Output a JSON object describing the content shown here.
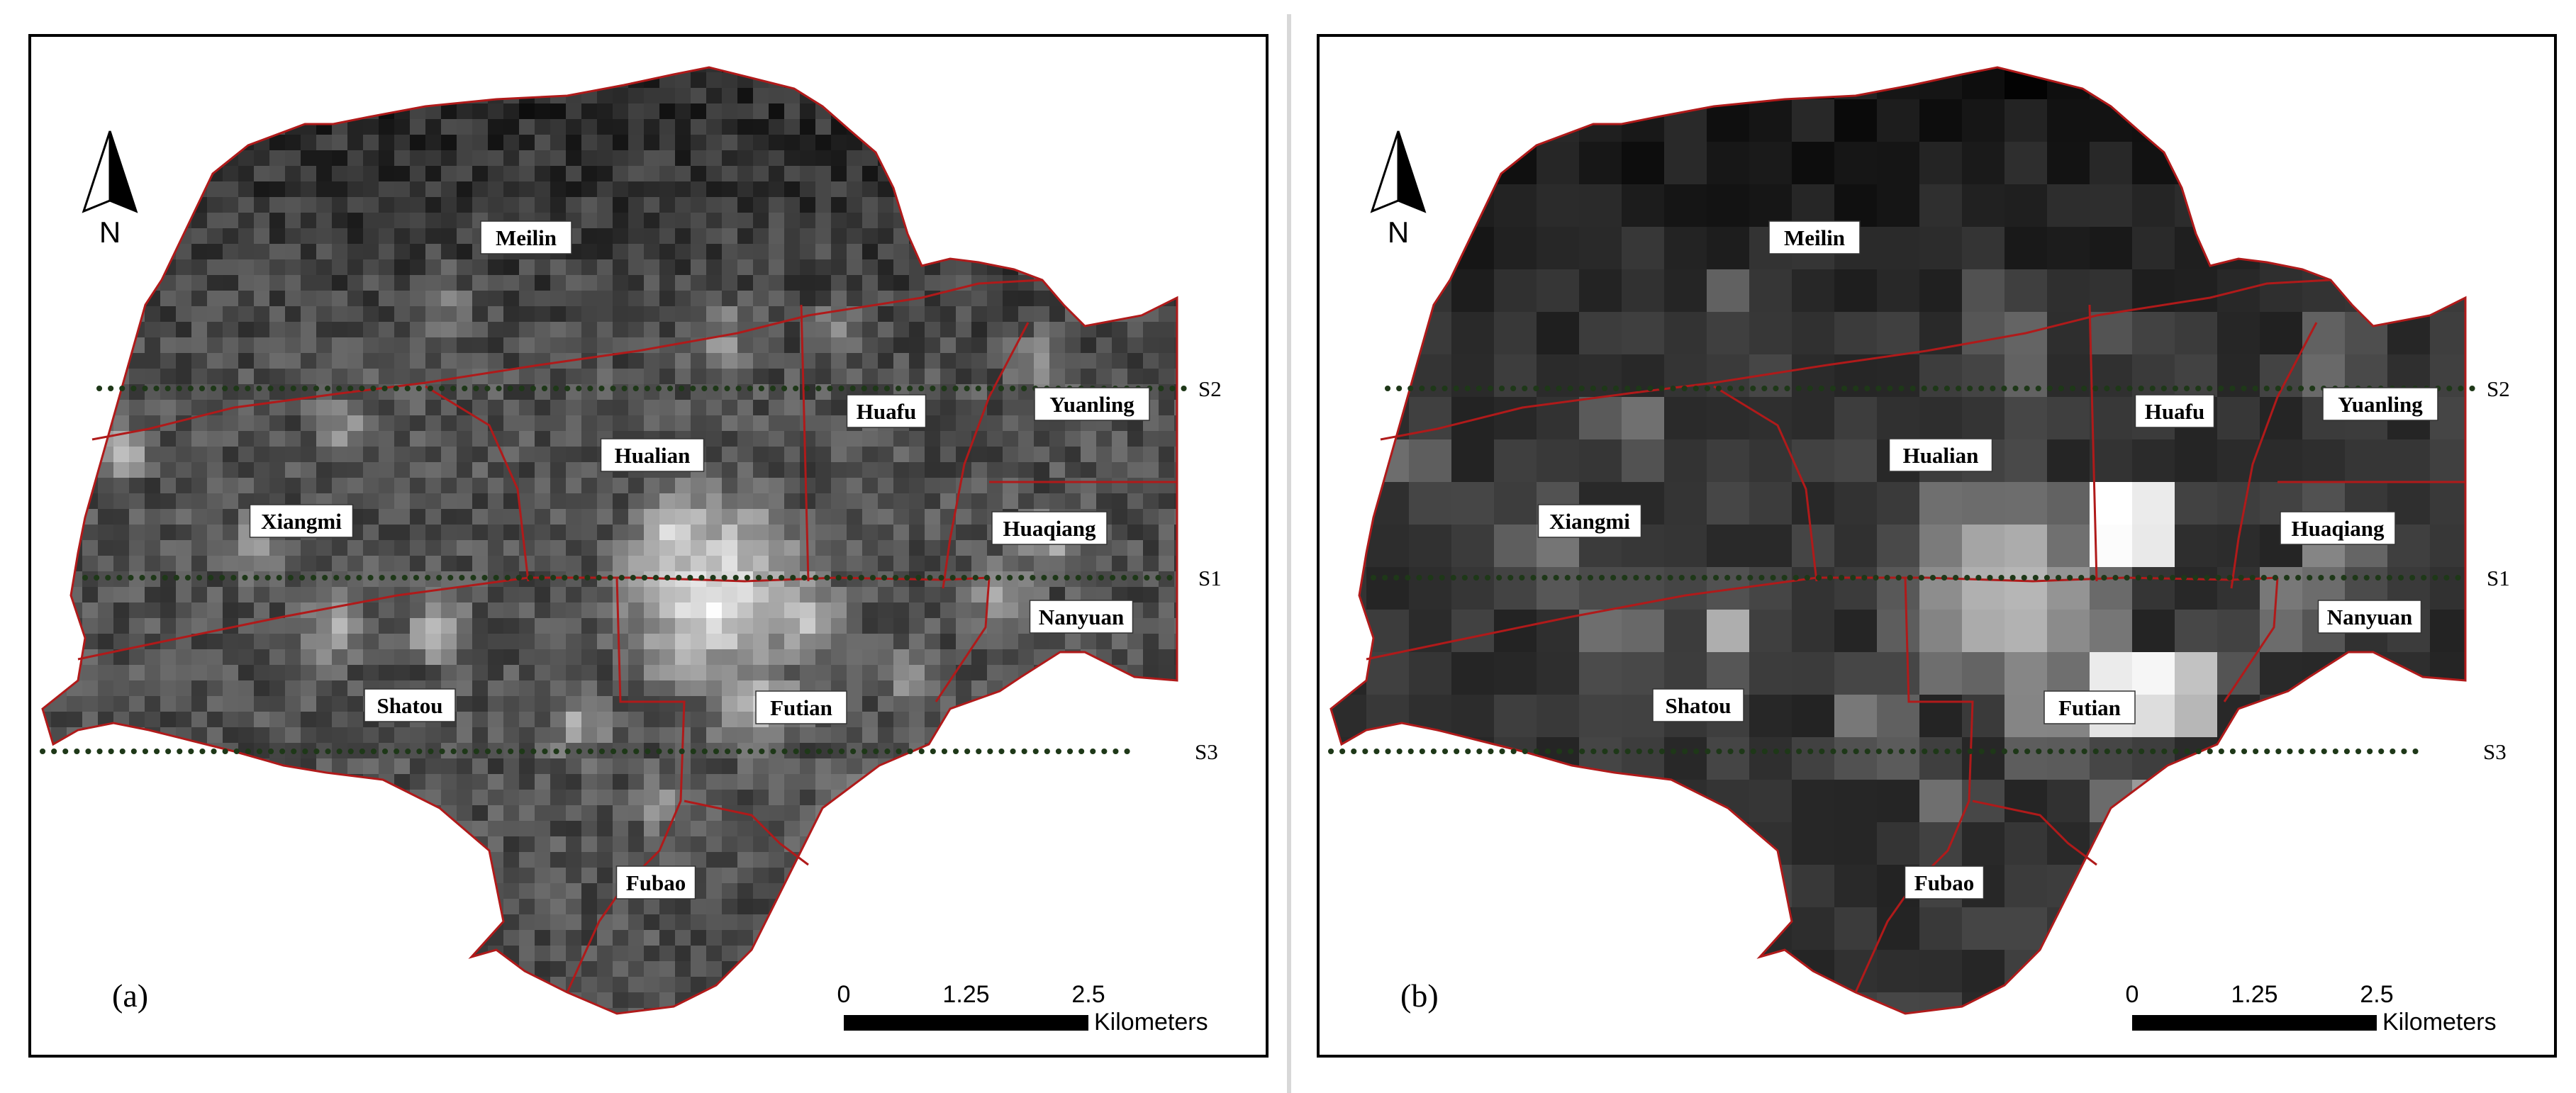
{
  "panels": [
    {
      "id": "a",
      "label": "(a)",
      "raster": "fine"
    },
    {
      "id": "b",
      "label": "(b)",
      "raster": "coarse"
    }
  ],
  "north_arrow": "N",
  "districts": [
    "Meilin",
    "Hualian",
    "Huafu",
    "Yuanling",
    "Xiangmi",
    "Huaqiang",
    "Nanyuan",
    "Shatou",
    "Futian",
    "Fubao"
  ],
  "transect_lines": [
    "S2",
    "S1",
    "S3"
  ],
  "scale_bar": {
    "ticks": [
      "0",
      "1.25",
      "2.5"
    ],
    "unit": "Kilometers"
  },
  "colors": {
    "boundary": "#b01a1a",
    "transect": "#1e3818",
    "frame": "#000000",
    "background": "#ffffff"
  }
}
